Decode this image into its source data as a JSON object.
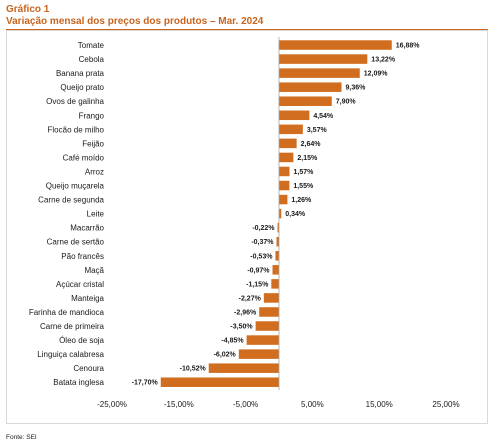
{
  "header": {
    "label": "Gráfico 1",
    "title": "Variação mensal dos preços dos produtos – Mar. 2024"
  },
  "source": "Fonte: SEI",
  "colors": {
    "bar": "#d06d1e",
    "title": "#c8641e"
  },
  "chart_data": {
    "type": "bar",
    "orientation": "horizontal",
    "categories": [
      "Tomate",
      "Cebola",
      "Banana prata",
      "Queijo prato",
      "Ovos de galinha",
      "Frango",
      "Flocão de milho",
      "Feijão",
      "Café moído",
      "Arroz",
      "Queijo muçarela",
      "Carne de segunda",
      "Leite",
      "Macarrão",
      "Carne de sertão",
      "Pão francês",
      "Maçã",
      "Açúcar cristal",
      "Manteiga",
      "Farinha de mandioca",
      "Carne de primeira",
      "Óleo de soja",
      "Linguiça calabresa",
      "Cenoura",
      "Batata inglesa"
    ],
    "values": [
      16.88,
      13.22,
      12.09,
      9.36,
      7.9,
      4.54,
      3.57,
      2.64,
      2.15,
      1.57,
      1.55,
      1.26,
      0.34,
      -0.22,
      -0.37,
      -0.53,
      -0.97,
      -1.15,
      -2.27,
      -2.96,
      -3.5,
      -4.85,
      -6.02,
      -10.52,
      -17.7
    ],
    "value_labels": [
      "16,88%",
      "13,22%",
      "12,09%",
      "9,36%",
      "7,90%",
      "4,54%",
      "3,57%",
      "2,64%",
      "2,15%",
      "1,57%",
      "1,55%",
      "1,26%",
      "0,34%",
      "-0,22%",
      "-0,37%",
      "-0,53%",
      "-0,97%",
      "-1,15%",
      "-2,27%",
      "-2,96%",
      "-3,50%",
      "-4,85%",
      "-6,02%",
      "-10,52%",
      "-17,70%"
    ],
    "xlim": [
      -25,
      25
    ],
    "ticks": [
      -25,
      -15,
      -5,
      5,
      15,
      25
    ],
    "tick_labels": [
      "-25,00%",
      "-15,00%",
      "-5,00%",
      "5,00%",
      "15,00%",
      "25,00%"
    ],
    "grid": false,
    "legend": "none"
  }
}
